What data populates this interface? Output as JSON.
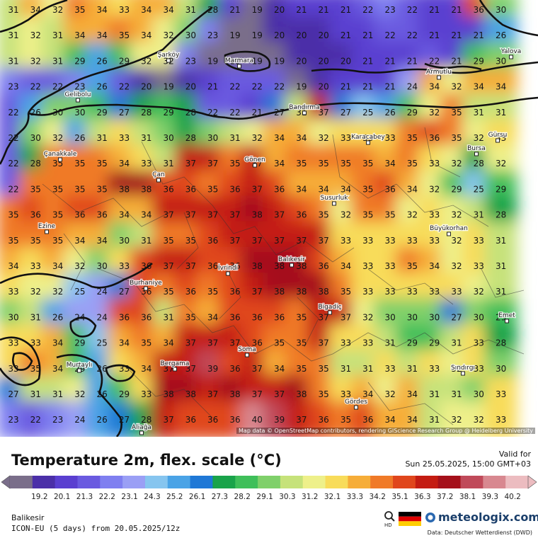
{
  "map": {
    "attribution": "Map data © OpenStreetMap contributors, rendering GIScience Research Group @ Heidelberg University",
    "grid_values": [
      [
        31,
        34,
        32,
        35,
        34,
        33,
        34,
        34,
        31,
        28,
        21,
        19,
        20,
        21,
        21,
        21,
        22,
        23,
        22,
        21,
        21,
        36,
        30
      ],
      [
        31,
        32,
        31,
        34,
        34,
        35,
        34,
        32,
        30,
        23,
        19,
        19,
        20,
        20,
        20,
        21,
        21,
        22,
        22,
        21,
        21,
        21,
        26
      ],
      [
        31,
        32,
        31,
        29,
        26,
        29,
        32,
        32,
        23,
        19,
        19,
        19,
        19,
        20,
        20,
        20,
        21,
        21,
        21,
        22,
        21,
        29,
        30
      ],
      [
        23,
        22,
        22,
        23,
        26,
        22,
        20,
        19,
        20,
        21,
        22,
        22,
        22,
        19,
        20,
        21,
        21,
        21,
        24,
        34,
        32,
        34,
        34
      ],
      [
        22,
        26,
        30,
        30,
        29,
        27,
        28,
        29,
        28,
        22,
        22,
        21,
        27,
        31,
        37,
        27,
        25,
        26,
        29,
        32,
        35,
        31,
        31
      ],
      [
        22,
        30,
        32,
        26,
        31,
        33,
        31,
        30,
        28,
        30,
        31,
        32,
        34,
        34,
        32,
        33,
        33,
        33,
        35,
        36,
        35,
        32,
        33
      ],
      [
        22,
        28,
        35,
        35,
        35,
        34,
        33,
        31,
        37,
        37,
        35,
        37,
        34,
        35,
        35,
        35,
        35,
        34,
        35,
        33,
        32,
        28,
        32
      ],
      [
        22,
        35,
        35,
        35,
        35,
        38,
        38,
        36,
        36,
        35,
        36,
        37,
        36,
        34,
        34,
        34,
        35,
        36,
        34,
        32,
        29,
        25,
        29
      ],
      [
        35,
        36,
        35,
        36,
        36,
        34,
        34,
        37,
        37,
        37,
        37,
        38,
        37,
        36,
        35,
        32,
        35,
        35,
        32,
        33,
        32,
        31,
        28
      ],
      [
        35,
        35,
        35,
        34,
        34,
        30,
        31,
        35,
        35,
        36,
        37,
        37,
        37,
        37,
        37,
        33,
        33,
        33,
        33,
        33,
        32,
        33,
        31
      ],
      [
        34,
        33,
        34,
        32,
        30,
        33,
        36,
        37,
        37,
        36,
        36,
        38,
        38,
        38,
        36,
        34,
        33,
        33,
        35,
        34,
        32,
        33,
        31
      ],
      [
        33,
        32,
        32,
        25,
        24,
        27,
        36,
        35,
        36,
        35,
        36,
        37,
        38,
        38,
        38,
        35,
        33,
        33,
        33,
        33,
        33,
        32,
        31
      ],
      [
        30,
        31,
        26,
        24,
        24,
        36,
        36,
        31,
        35,
        34,
        36,
        36,
        36,
        35,
        37,
        37,
        32,
        30,
        30,
        30,
        27,
        30,
        29
      ],
      [
        33,
        33,
        34,
        29,
        25,
        34,
        35,
        34,
        37,
        37,
        37,
        36,
        35,
        35,
        37,
        33,
        33,
        31,
        29,
        29,
        31,
        33,
        28
      ],
      [
        33,
        35,
        34,
        29,
        26,
        33,
        34,
        37,
        37,
        39,
        36,
        37,
        34,
        35,
        35,
        31,
        31,
        33,
        31,
        33,
        32,
        33,
        30
      ],
      [
        27,
        31,
        31,
        32,
        26,
        29,
        33,
        38,
        38,
        37,
        38,
        37,
        37,
        38,
        35,
        33,
        34,
        32,
        34,
        31,
        31,
        30,
        33
      ],
      [
        23,
        22,
        23,
        24,
        26,
        27,
        28,
        37,
        36,
        36,
        36,
        40,
        39,
        37,
        36,
        35,
        36,
        34,
        34,
        31,
        32,
        32,
        33
      ]
    ],
    "cities": [
      "Şarköy",
      "Marmara",
      "Yalova",
      "Armutlu",
      "Gelibolu",
      "Bandırma",
      "Çanakkale",
      "Karacabey",
      "Gürsu",
      "Bursa",
      "Gönen",
      "Çan",
      "Susurluk",
      "Ezine",
      "Büyükorhan",
      "Balıkesir",
      "İvrindi",
      "Burhaniye",
      "Bigadiç",
      "Emet",
      "Soma",
      "Bergama",
      "Murtaylı",
      "Sındırgı",
      "Gördes",
      "Aliağa"
    ]
  },
  "legend": {
    "title": "Temperature 2m, flex. scale (°C)",
    "valid_label": "Valid for",
    "valid_time": "Sun 25.05.2025, 15:00 GMT+03",
    "ticks": [
      "19.2",
      "20.1",
      "21.3",
      "22.2",
      "23.1",
      "24.3",
      "25.2",
      "26.1",
      "27.3",
      "28.2",
      "29.1",
      "30.3",
      "31.2",
      "32.1",
      "33.3",
      "34.2",
      "35.1",
      "36.3",
      "37.2",
      "38.1",
      "39.3",
      "40.2"
    ],
    "colors": [
      "#7a6e8a",
      "#4b2fa8",
      "#5a3fd0",
      "#6a5ae0",
      "#7f7ff0",
      "#9a9ff5",
      "#86c5ef",
      "#4aa3e6",
      "#1f78d6",
      "#19a34a",
      "#3fbf5a",
      "#7fd06a",
      "#c6e27a",
      "#eef08a",
      "#f8dc5a",
      "#f6ad38",
      "#f07a28",
      "#e0461c",
      "#c41c12",
      "#a5101a",
      "#c04a5a",
      "#d88890",
      "#ecbcc0"
    ]
  },
  "footer": {
    "location": "Balikesir",
    "model": "ICON-EU (5 days) from 20.05.2025/12z",
    "brand": "meteologix.com",
    "source": "Data: Deutscher Wetterdienst (DWD)",
    "hd": "HD"
  }
}
